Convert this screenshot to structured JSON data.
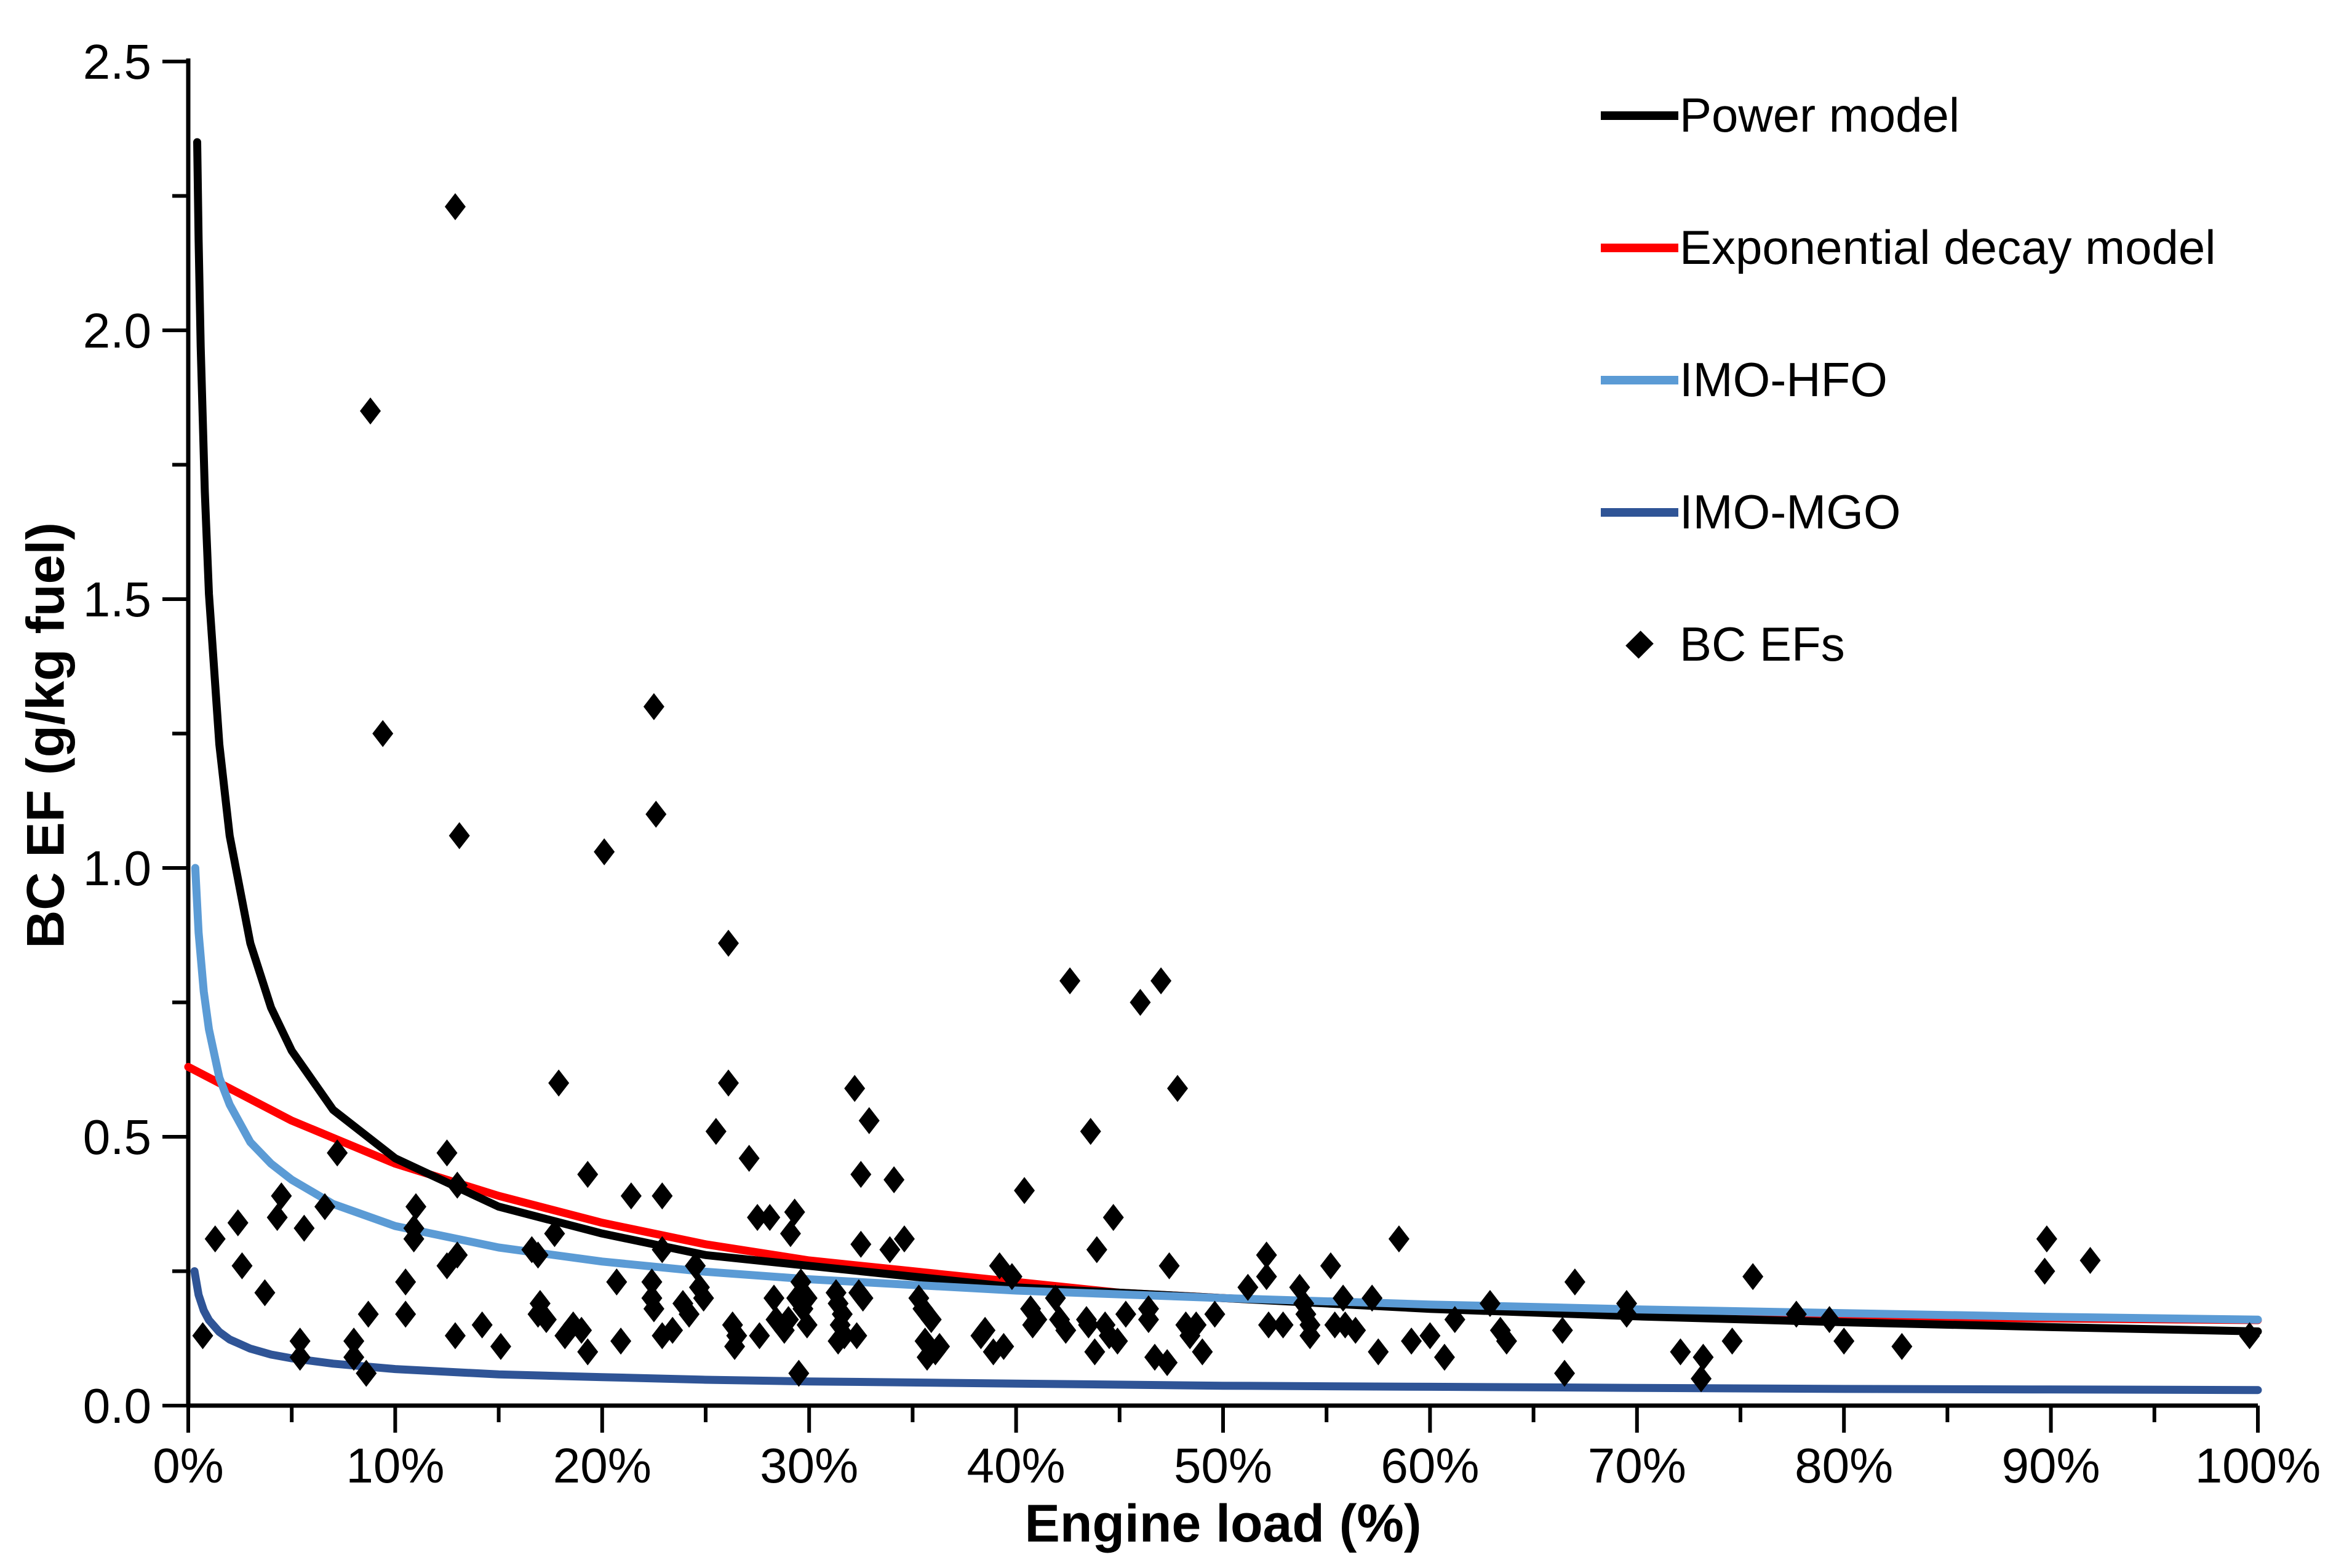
{
  "chart_data": {
    "type": "scatter",
    "title": "",
    "xlabel": "Engine load (%)",
    "ylabel": "BC EF (g/kg fuel)",
    "xlim_pct": [
      0,
      100
    ],
    "ylim": [
      0,
      2.5
    ],
    "x_major_ticks_pct": [
      0,
      10,
      20,
      30,
      40,
      50,
      60,
      70,
      80,
      90,
      100
    ],
    "x_tick_labels": [
      "0%",
      "10%",
      "20%",
      "30%",
      "40%",
      "50%",
      "60%",
      "70%",
      "80%",
      "90%",
      "100%"
    ],
    "x_minor_ticks_pct": [
      5,
      15,
      25,
      35,
      45,
      55,
      65,
      75,
      85,
      95
    ],
    "y_major_ticks": [
      0,
      0.5,
      1.0,
      1.5,
      2.0,
      2.5
    ],
    "y_tick_labels": [
      "0.0",
      "0.5",
      "1.0",
      "1.5",
      "2.0",
      "2.5"
    ],
    "y_minor_ticks": [
      0.25,
      0.75,
      1.25,
      1.75,
      2.25
    ],
    "grid": "off",
    "legend": {
      "position": "top-right",
      "items": [
        {
          "label": "Power model",
          "marker": "line",
          "color": "#000000"
        },
        {
          "label": "Exponential decay model",
          "marker": "line",
          "color": "#FF0000"
        },
        {
          "label": "IMO-HFO",
          "marker": "line",
          "color": "#5B9BD5"
        },
        {
          "label": "IMO-MGO",
          "marker": "line",
          "color": "#2F5496"
        },
        {
          "label": "BC EFs",
          "marker": "diamond",
          "color": "#000000"
        }
      ]
    },
    "series": [
      {
        "name": "Power model",
        "type": "line",
        "color": "#000000",
        "points": [
          [
            0.43,
            2.35
          ],
          [
            0.5,
            2.17
          ],
          [
            0.6,
            1.97
          ],
          [
            0.8,
            1.7
          ],
          [
            1,
            1.51
          ],
          [
            1.5,
            1.23
          ],
          [
            2,
            1.06
          ],
          [
            3,
            0.86
          ],
          [
            4,
            0.74
          ],
          [
            5,
            0.66
          ],
          [
            7,
            0.55
          ],
          [
            10,
            0.46
          ],
          [
            15,
            0.37
          ],
          [
            20,
            0.32
          ],
          [
            25,
            0.28
          ],
          [
            30,
            0.26
          ],
          [
            40,
            0.22
          ],
          [
            50,
            0.2
          ],
          [
            60,
            0.18
          ],
          [
            70,
            0.166
          ],
          [
            80,
            0.155
          ],
          [
            90,
            0.146
          ],
          [
            100,
            0.138
          ]
        ]
      },
      {
        "name": "Exponential decay model",
        "type": "line",
        "color": "#FF0000",
        "points": [
          [
            0,
            0.63
          ],
          [
            2,
            0.59
          ],
          [
            5,
            0.53
          ],
          [
            7.5,
            0.49
          ],
          [
            10,
            0.45
          ],
          [
            15,
            0.39
          ],
          [
            20,
            0.34
          ],
          [
            25,
            0.3
          ],
          [
            30,
            0.27
          ],
          [
            35,
            0.25
          ],
          [
            40,
            0.23
          ],
          [
            45,
            0.21
          ],
          [
            50,
            0.2
          ],
          [
            60,
            0.183
          ],
          [
            70,
            0.173
          ],
          [
            80,
            0.166
          ],
          [
            90,
            0.162
          ],
          [
            100,
            0.159
          ]
        ]
      },
      {
        "name": "IMO-HFO",
        "type": "line",
        "color": "#5B9BD5",
        "points": [
          [
            0.34,
            1.0
          ],
          [
            0.5,
            0.88
          ],
          [
            0.75,
            0.77
          ],
          [
            1,
            0.7
          ],
          [
            1.5,
            0.61
          ],
          [
            2,
            0.56
          ],
          [
            3,
            0.49
          ],
          [
            4,
            0.45
          ],
          [
            5,
            0.42
          ],
          [
            7,
            0.375
          ],
          [
            10,
            0.334
          ],
          [
            15,
            0.294
          ],
          [
            20,
            0.268
          ],
          [
            25,
            0.249
          ],
          [
            30,
            0.235
          ],
          [
            40,
            0.214
          ],
          [
            50,
            0.2
          ],
          [
            60,
            0.188
          ],
          [
            70,
            0.179
          ],
          [
            80,
            0.172
          ],
          [
            90,
            0.165
          ],
          [
            100,
            0.16
          ]
        ]
      },
      {
        "name": "IMO-MGO",
        "type": "line",
        "color": "#2F5496",
        "points": [
          [
            0.3,
            0.25
          ],
          [
            0.5,
            0.206
          ],
          [
            0.75,
            0.177
          ],
          [
            1,
            0.159
          ],
          [
            1.5,
            0.137
          ],
          [
            2,
            0.123
          ],
          [
            3,
            0.106
          ],
          [
            4,
            0.095
          ],
          [
            5,
            0.088
          ],
          [
            7,
            0.078
          ],
          [
            10,
            0.068
          ],
          [
            15,
            0.058
          ],
          [
            20,
            0.053
          ],
          [
            25,
            0.048
          ],
          [
            30,
            0.045
          ],
          [
            40,
            0.041
          ],
          [
            50,
            0.037
          ],
          [
            60,
            0.035
          ],
          [
            70,
            0.033
          ],
          [
            80,
            0.031
          ],
          [
            90,
            0.03
          ],
          [
            100,
            0.029
          ]
        ]
      },
      {
        "name": "BC EFs",
        "type": "scatter",
        "marker": "diamond",
        "color": "#000000",
        "points": [
          [
            12.9,
            2.23
          ],
          [
            8.8,
            1.85
          ],
          [
            9.4,
            1.25
          ],
          [
            13.1,
            1.06
          ],
          [
            22.5,
            1.3
          ],
          [
            22.6,
            1.1
          ],
          [
            20.1,
            1.03
          ],
          [
            26.1,
            0.86
          ],
          [
            42.6,
            0.79
          ],
          [
            47.0,
            0.79
          ],
          [
            46.0,
            0.75
          ],
          [
            17.9,
            0.6
          ],
          [
            26.1,
            0.6
          ],
          [
            32.2,
            0.59
          ],
          [
            47.8,
            0.59
          ],
          [
            32.9,
            0.53
          ],
          [
            43.6,
            0.51
          ],
          [
            25.5,
            0.51
          ],
          [
            7.2,
            0.47
          ],
          [
            12.5,
            0.47
          ],
          [
            13.0,
            0.41
          ],
          [
            4.5,
            0.39
          ],
          [
            4.3,
            0.35
          ],
          [
            2.4,
            0.34
          ],
          [
            1.3,
            0.31
          ],
          [
            5.6,
            0.33
          ],
          [
            6.6,
            0.37
          ],
          [
            11.0,
            0.37
          ],
          [
            10.9,
            0.33
          ],
          [
            10.9,
            0.31
          ],
          [
            13.0,
            0.28
          ],
          [
            12.5,
            0.26
          ],
          [
            2.6,
            0.26
          ],
          [
            10.5,
            0.23
          ],
          [
            10.5,
            0.17
          ],
          [
            3.7,
            0.21
          ],
          [
            8.7,
            0.17
          ],
          [
            12.9,
            0.13
          ],
          [
            14.2,
            0.15
          ],
          [
            0.7,
            0.13
          ],
          [
            5.4,
            0.12
          ],
          [
            5.4,
            0.09
          ],
          [
            8.0,
            0.12
          ],
          [
            8.0,
            0.09
          ],
          [
            8.6,
            0.06
          ],
          [
            15.1,
            0.11
          ],
          [
            19.3,
            0.43
          ],
          [
            21.4,
            0.39
          ],
          [
            22.9,
            0.39
          ],
          [
            17.7,
            0.32
          ],
          [
            16.6,
            0.29
          ],
          [
            16.9,
            0.28
          ],
          [
            22.9,
            0.29
          ],
          [
            27.5,
            0.35
          ],
          [
            28.1,
            0.35
          ],
          [
            29.3,
            0.36
          ],
          [
            29.1,
            0.32
          ],
          [
            27.1,
            0.46
          ],
          [
            24.5,
            0.26
          ],
          [
            24.7,
            0.22
          ],
          [
            24.9,
            0.2
          ],
          [
            20.7,
            0.23
          ],
          [
            22.4,
            0.23
          ],
          [
            22.4,
            0.2
          ],
          [
            22.5,
            0.18
          ],
          [
            17.0,
            0.19
          ],
          [
            16.9,
            0.17
          ],
          [
            17.3,
            0.16
          ],
          [
            23.9,
            0.19
          ],
          [
            24.2,
            0.17
          ],
          [
            23.4,
            0.14
          ],
          [
            22.9,
            0.13
          ],
          [
            18.2,
            0.13
          ],
          [
            18.6,
            0.15
          ],
          [
            19.0,
            0.14
          ],
          [
            20.9,
            0.12
          ],
          [
            19.3,
            0.1
          ],
          [
            26.3,
            0.15
          ],
          [
            26.5,
            0.13
          ],
          [
            26.4,
            0.11
          ],
          [
            27.6,
            0.13
          ],
          [
            28.4,
            0.16
          ],
          [
            28.8,
            0.14
          ],
          [
            29.0,
            0.16
          ],
          [
            28.3,
            0.2
          ],
          [
            29.4,
            0.2
          ],
          [
            29.7,
            0.18
          ],
          [
            29.9,
            0.15
          ],
          [
            29.6,
            0.23
          ],
          [
            29.9,
            0.2
          ],
          [
            29.5,
            0.06
          ],
          [
            34.1,
            0.42
          ],
          [
            32.5,
            0.43
          ],
          [
            40.4,
            0.4
          ],
          [
            44.7,
            0.35
          ],
          [
            32.5,
            0.3
          ],
          [
            33.9,
            0.29
          ],
          [
            34.6,
            0.31
          ],
          [
            43.9,
            0.29
          ],
          [
            39.2,
            0.26
          ],
          [
            39.8,
            0.24
          ],
          [
            31.3,
            0.21
          ],
          [
            31.4,
            0.19
          ],
          [
            31.6,
            0.17
          ],
          [
            31.5,
            0.15
          ],
          [
            31.7,
            0.13
          ],
          [
            31.4,
            0.12
          ],
          [
            32.4,
            0.21
          ],
          [
            32.6,
            0.2
          ],
          [
            32.3,
            0.13
          ],
          [
            35.3,
            0.2
          ],
          [
            35.5,
            0.18
          ],
          [
            35.9,
            0.16
          ],
          [
            35.6,
            0.12
          ],
          [
            36.1,
            0.1
          ],
          [
            36.3,
            0.11
          ],
          [
            35.7,
            0.09
          ],
          [
            38.3,
            0.13
          ],
          [
            38.5,
            0.14
          ],
          [
            38.9,
            0.1
          ],
          [
            39.4,
            0.11
          ],
          [
            40.7,
            0.18
          ],
          [
            41.0,
            0.16
          ],
          [
            40.8,
            0.15
          ],
          [
            41.9,
            0.2
          ],
          [
            42.1,
            0.16
          ],
          [
            42.4,
            0.14
          ],
          [
            43.4,
            0.16
          ],
          [
            43.5,
            0.15
          ],
          [
            43.8,
            0.1
          ],
          [
            44.3,
            0.15
          ],
          [
            44.5,
            0.13
          ],
          [
            44.9,
            0.12
          ],
          [
            45.3,
            0.17
          ],
          [
            46.4,
            0.18
          ],
          [
            46.4,
            0.16
          ],
          [
            47.4,
            0.26
          ],
          [
            52.1,
            0.28
          ],
          [
            52.1,
            0.24
          ],
          [
            51.2,
            0.22
          ],
          [
            53.7,
            0.22
          ],
          [
            53.9,
            0.19
          ],
          [
            55.2,
            0.26
          ],
          [
            58.5,
            0.31
          ],
          [
            55.8,
            0.2
          ],
          [
            57.2,
            0.2
          ],
          [
            54.0,
            0.17
          ],
          [
            54.2,
            0.15
          ],
          [
            54.2,
            0.13
          ],
          [
            52.2,
            0.15
          ],
          [
            52.9,
            0.15
          ],
          [
            55.4,
            0.15
          ],
          [
            55.9,
            0.15
          ],
          [
            56.4,
            0.14
          ],
          [
            49.6,
            0.17
          ],
          [
            48.2,
            0.15
          ],
          [
            48.4,
            0.13
          ],
          [
            48.7,
            0.15
          ],
          [
            49.0,
            0.1
          ],
          [
            46.7,
            0.09
          ],
          [
            47.3,
            0.08
          ],
          [
            57.5,
            0.1
          ],
          [
            59.1,
            0.12
          ],
          [
            60.0,
            0.13
          ],
          [
            60.7,
            0.09
          ],
          [
            61.2,
            0.16
          ],
          [
            62.9,
            0.19
          ],
          [
            63.4,
            0.14
          ],
          [
            63.7,
            0.12
          ],
          [
            67.0,
            0.23
          ],
          [
            66.4,
            0.14
          ],
          [
            66.5,
            0.06
          ],
          [
            69.5,
            0.19
          ],
          [
            69.5,
            0.17
          ],
          [
            72.1,
            0.1
          ],
          [
            73.2,
            0.09
          ],
          [
            73.1,
            0.05
          ],
          [
            74.6,
            0.12
          ],
          [
            75.6,
            0.24
          ],
          [
            77.7,
            0.17
          ],
          [
            79.3,
            0.16
          ],
          [
            80.0,
            0.12
          ],
          [
            82.8,
            0.11
          ],
          [
            89.8,
            0.31
          ],
          [
            89.7,
            0.25
          ],
          [
            91.9,
            0.27
          ],
          [
            99.6,
            0.13
          ]
        ]
      }
    ]
  }
}
